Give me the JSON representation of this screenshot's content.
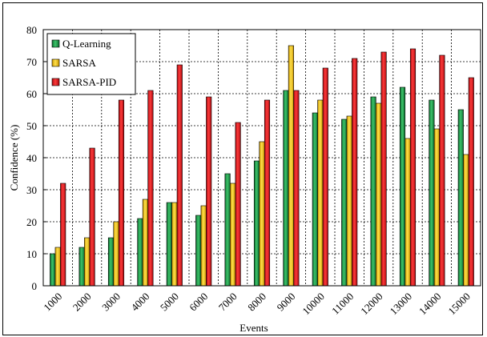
{
  "chart_data": {
    "type": "bar",
    "title": "",
    "xlabel": "Events",
    "ylabel": "Confidence (%)",
    "ylim": [
      0,
      80
    ],
    "yticks": [
      0,
      10,
      20,
      30,
      40,
      50,
      60,
      70,
      80
    ],
    "grid": true,
    "legend_position": "top-left",
    "categories": [
      "1000",
      "2000",
      "3000",
      "4000",
      "5000",
      "6000",
      "7000",
      "8000",
      "9000",
      "10000",
      "11000",
      "12000",
      "13000",
      "14000",
      "15000"
    ],
    "series": [
      {
        "name": "Q-Learning",
        "color": "#1f9a4a",
        "values": [
          10,
          12,
          15,
          21,
          26,
          22,
          35,
          39,
          61,
          54,
          52,
          59,
          62,
          58,
          55
        ]
      },
      {
        "name": "SARSA",
        "color": "#f5c400",
        "values": [
          12,
          15,
          20,
          27,
          26,
          25,
          32,
          45,
          75,
          58,
          53,
          57,
          46,
          49,
          41
        ]
      },
      {
        "name": "SARSA-PID",
        "color": "#e8141c",
        "values": [
          32,
          43,
          58,
          61,
          69,
          59,
          51,
          58,
          61,
          68,
          71,
          73,
          74,
          72,
          65
        ]
      }
    ]
  }
}
